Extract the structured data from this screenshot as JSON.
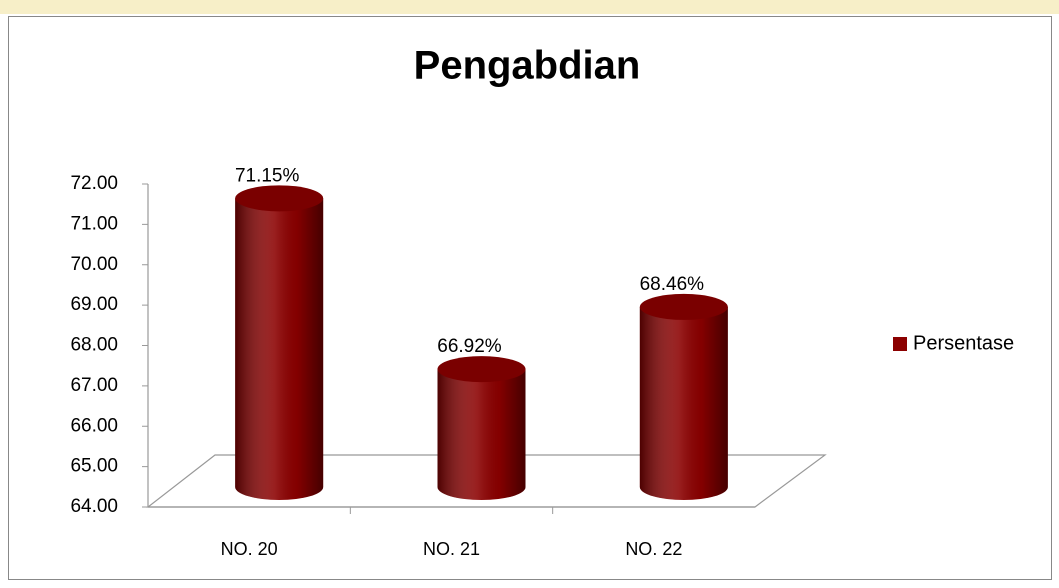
{
  "chart_data": {
    "type": "bar",
    "title": "Pengabdian",
    "categories": [
      "NO. 20",
      "NO. 21",
      "NO. 22"
    ],
    "series": [
      {
        "name": "Persentase",
        "color": "#8b0000",
        "values": [
          71.15,
          66.92,
          68.46
        ],
        "value_labels": [
          "71.15%",
          "66.92%",
          "68.46%"
        ]
      }
    ],
    "ylim": [
      64,
      72
    ],
    "yticks": [
      {
        "value": 64,
        "label": "64.00"
      },
      {
        "value": 65,
        "label": "65.00"
      },
      {
        "value": 66,
        "label": "66.00"
      },
      {
        "value": 67,
        "label": "67.00"
      },
      {
        "value": 68,
        "label": "68.00"
      },
      {
        "value": 69,
        "label": "69.00"
      },
      {
        "value": 70,
        "label": "70.00"
      },
      {
        "value": 71,
        "label": "71.00"
      },
      {
        "value": 72,
        "label": "72.00"
      }
    ],
    "legend": "right"
  }
}
